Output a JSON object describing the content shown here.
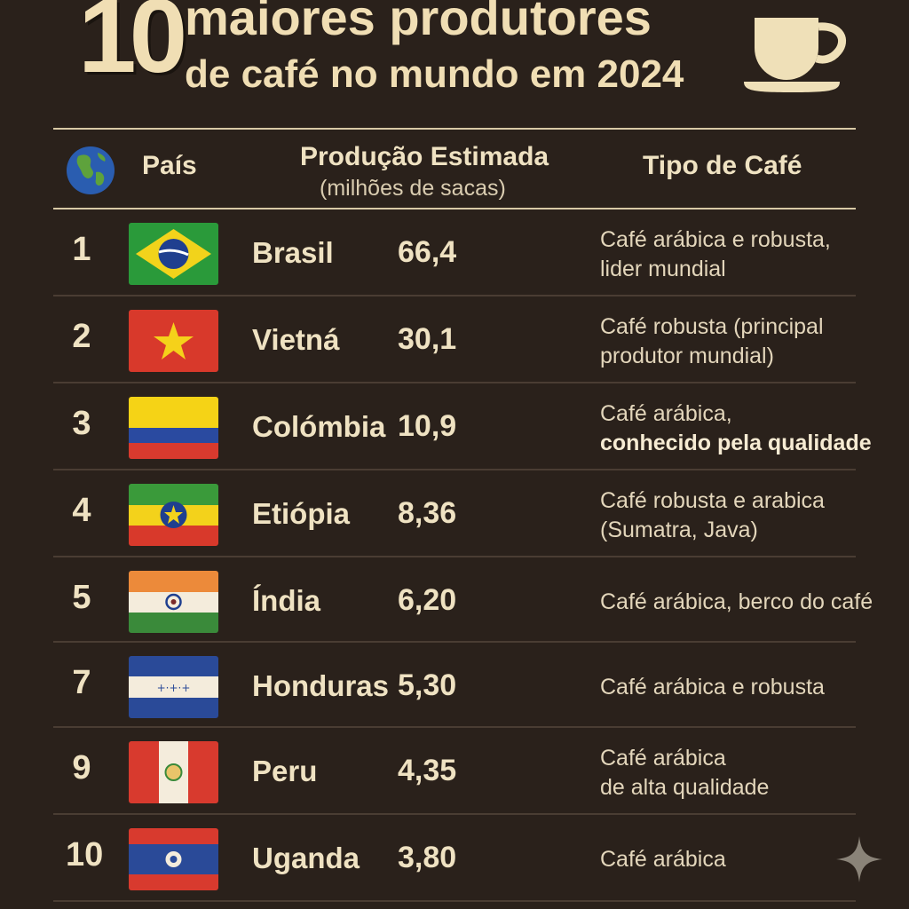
{
  "header": {
    "number": "10",
    "title_line1": "maiores produtores",
    "title_line2": "de café no mundo em 2024"
  },
  "columns": {
    "country": "País",
    "production": "Produção Estimada",
    "production_unit": "(milhões de sacas)",
    "type": "Tipo de Café"
  },
  "rows": [
    {
      "rank": "1",
      "country": "Brasil",
      "production": "66,4",
      "type_line1": "Café arábica e robusta,",
      "type_line2": "lider mundial",
      "flag": "brazil-flag"
    },
    {
      "rank": "2",
      "country": "Vietná",
      "production": "30,1",
      "type_line1": "Café robusta (principal",
      "type_line2": "produtor mundial)",
      "flag": "vietnam-flag"
    },
    {
      "rank": "3",
      "country": "Colómbia",
      "production": "10,9",
      "type_line1": "Café arábica,",
      "type_line2": "conhecido pela qualidade",
      "flag": "colombia-flag"
    },
    {
      "rank": "4",
      "country": "Etiópia",
      "production": "8,36",
      "type_line1": "Café robusta e arabica",
      "type_line2": "(Sumatra, Java)",
      "flag": "ethiopia-flag"
    },
    {
      "rank": "5",
      "country": "Índia",
      "production": "6,20",
      "type_line1": "Café arábica, berco do café",
      "type_line2": "",
      "flag": "india-flag"
    },
    {
      "rank": "7",
      "country": "Honduras",
      "production": "5,30",
      "type_line1": "Café arábica e robusta",
      "type_line2": "",
      "flag": "honduras-flag"
    },
    {
      "rank": "9",
      "country": "Peru",
      "production": "4,35",
      "type_line1": "Café arábica",
      "type_line2": "de alta qualidade",
      "flag": "peru-flag"
    },
    {
      "rank": "10",
      "country": "Uganda",
      "production": "3,80",
      "type_line1": "Café arábica",
      "type_line2": "",
      "flag": "uganda-flag"
    }
  ],
  "icons": [
    "coffee-cup-icon",
    "globe-icon",
    "sparkle-icon"
  ],
  "colors": {
    "background": "#2a211b",
    "text": "#efe2c2",
    "rule": "#d8c9a6"
  }
}
